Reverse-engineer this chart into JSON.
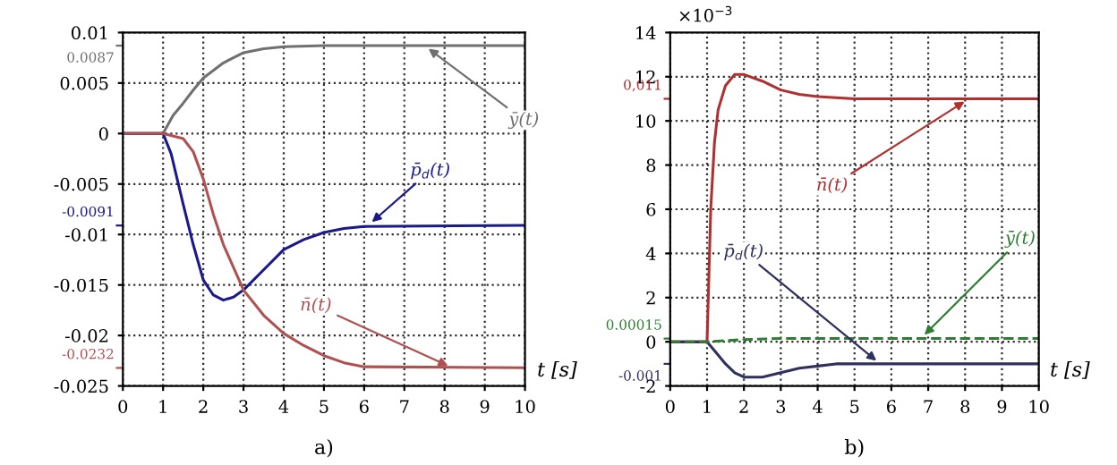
{
  "chart_data": [
    {
      "type": "line",
      "xlabel": "t [s]",
      "xlim": [
        0,
        10
      ],
      "ylim": [
        -0.025,
        0.01
      ],
      "xticks": [
        0,
        1,
        2,
        3,
        4,
        5,
        6,
        7,
        8,
        9,
        10
      ],
      "yticks": [
        -0.025,
        -0.02,
        -0.015,
        -0.01,
        -0.005,
        0,
        0.005,
        0.01
      ],
      "grid": true,
      "line_style": "solid",
      "series": [
        {
          "color": "#707070",
          "x": [
            0,
            1,
            1.25,
            1.5,
            1.75,
            2,
            2.5,
            3,
            3.5,
            4,
            5,
            6,
            10
          ],
          "values": [
            0,
            0,
            0.0018,
            0.003,
            0.0043,
            0.0055,
            0.007,
            0.008,
            0.0084,
            0.0086,
            0.0087,
            0.0087,
            0.0087
          ]
        },
        {
          "color": "#1a1a8c",
          "x": [
            0,
            1,
            1.2,
            1.5,
            1.75,
            2,
            2.25,
            2.5,
            2.75,
            3,
            3.5,
            4,
            4.5,
            5,
            5.5,
            6,
            10
          ],
          "values": [
            0,
            0,
            -0.002,
            -0.007,
            -0.011,
            -0.0145,
            -0.016,
            -0.0165,
            -0.0162,
            -0.0155,
            -0.0135,
            -0.0115,
            -0.0105,
            -0.0098,
            -0.0094,
            -0.0092,
            -0.0091
          ]
        },
        {
          "color": "#b05050",
          "x": [
            0,
            1,
            1.5,
            1.75,
            2,
            2.25,
            2.5,
            3,
            3.5,
            4,
            4.5,
            5,
            5.5,
            6,
            10
          ],
          "values": [
            0,
            0,
            -0.0005,
            -0.0018,
            -0.0045,
            -0.008,
            -0.011,
            -0.0155,
            -0.018,
            -0.0198,
            -0.021,
            -0.022,
            -0.0227,
            -0.0231,
            -0.0232
          ]
        }
      ],
      "annotations": [
        "0.0087",
        "-0.0091",
        "-0.0232",
        {
          "text": "ȳ(t)",
          "x": 7.5,
          "y": 0.0087
        },
        {
          "text": "p̄$_{d}$(t)",
          "x": 6.1,
          "y": -0.0091
        },
        {
          "text": "n̄(t)",
          "x": 8.2,
          "y": -0.0232
        },
        "a)"
      ]
    },
    {
      "type": "line",
      "xlabel": "t [s]",
      "xlim": [
        0,
        10
      ],
      "ylim": [
        -2,
        14
      ],
      "xticks": [
        0,
        1,
        2,
        3,
        4,
        5,
        6,
        7,
        8,
        9,
        10
      ],
      "yticks": [
        -2,
        0,
        2,
        4,
        6,
        8,
        10,
        12,
        14
      ],
      "grid": true,
      "line_style": "solid",
      "series": [
        {
          "color": "#b03030",
          "x": [
            0,
            1,
            1.05,
            1.1,
            1.2,
            1.3,
            1.5,
            1.75,
            2,
            2.5,
            3,
            3.5,
            4,
            5,
            10
          ],
          "values": [
            0,
            0,
            3,
            6,
            9,
            10.5,
            11.6,
            12.1,
            12.1,
            11.8,
            11.4,
            11.2,
            11.1,
            11,
            11
          ]
        },
        {
          "color": "#303060",
          "x": [
            0,
            1,
            1.25,
            1.5,
            1.75,
            2,
            2.5,
            3,
            3.5,
            4,
            4.5,
            5,
            10
          ],
          "values": [
            0,
            0,
            -0.5,
            -1.0,
            -1.4,
            -1.6,
            -1.6,
            -1.4,
            -1.2,
            -1.1,
            -1.0,
            -1.0,
            -1.0
          ]
        },
        {
          "color": "#2e7d32",
          "line_style": "dashed",
          "x": [
            0,
            1,
            2,
            3,
            10
          ],
          "values": [
            0,
            0,
            0.1,
            0.15,
            0.15
          ]
        }
      ],
      "annotations": [
        "0,011",
        "0.00015",
        "-0.001",
        {
          "text": "n̄(t)",
          "x": 8.1,
          "y": 11
        },
        {
          "text": "p̄$_{d}$(t)",
          "x": 5.7,
          "y": -1.0
        },
        {
          "text": "ȳ(t)",
          "x": 6.8,
          "y": 0.15
        },
        "×10$^{−3}$",
        "b)"
      ]
    }
  ]
}
